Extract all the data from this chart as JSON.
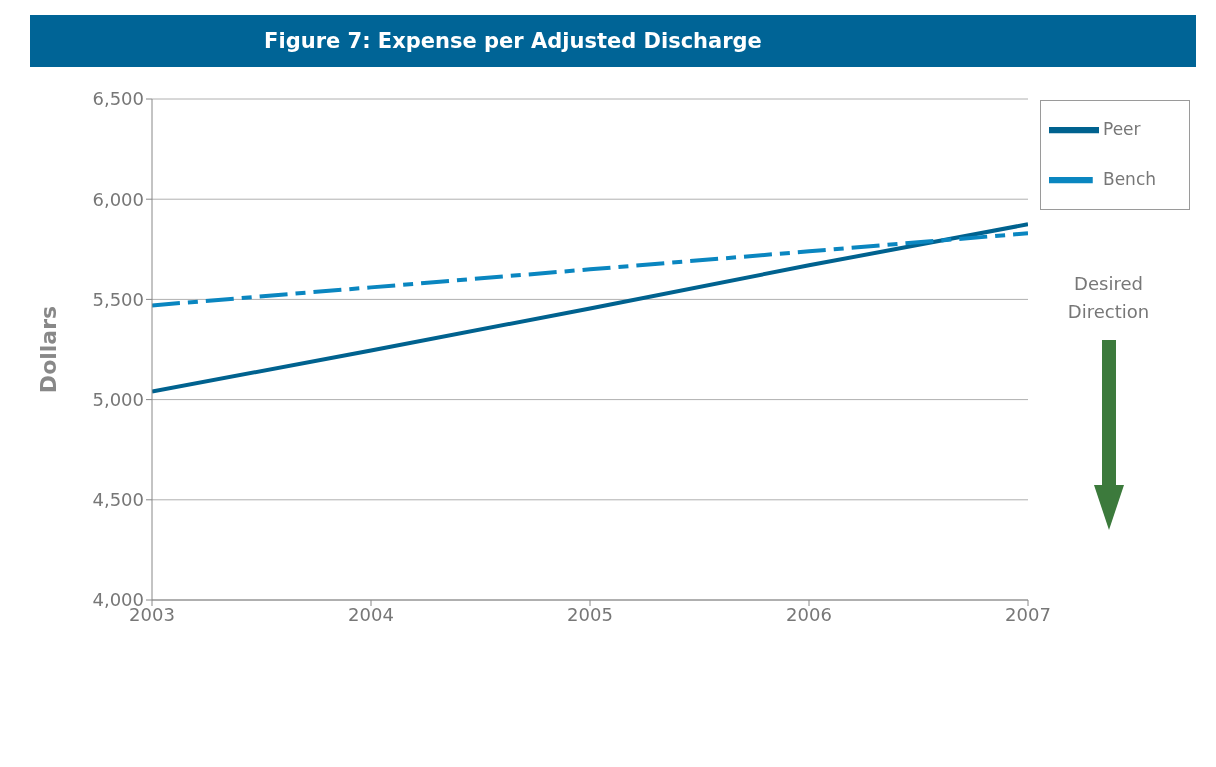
{
  "chart_data": {
    "type": "line",
    "title": "Figure 7: Expense per Adjusted Discharge",
    "ylabel": "Dollars",
    "x": [
      2003,
      2004,
      2005,
      2006,
      2007
    ],
    "xlim": [
      2003,
      2007
    ],
    "xticks": [
      2003,
      2004,
      2005,
      2006,
      2007
    ],
    "ylim": [
      4000,
      6500
    ],
    "yticks": [
      {
        "value": 4000,
        "label": "4,000"
      },
      {
        "value": 4500,
        "label": "4,500"
      },
      {
        "value": 5000,
        "label": "5,000"
      },
      {
        "value": 5500,
        "label": "5,500"
      },
      {
        "value": 6000,
        "label": "6,000"
      },
      {
        "value": 6500,
        "label": "6,500"
      }
    ],
    "grid": "y",
    "legend": "top right",
    "marker": "none",
    "series": [
      {
        "name": "Peer",
        "color": "#00628f",
        "values": [
          5040,
          5245,
          5455,
          5670,
          5875
        ],
        "line_style": "solid"
      },
      {
        "name": "Bench",
        "color": "#0a86c0",
        "values": [
          5470,
          5560,
          5650,
          5740,
          5830
        ],
        "line_style": "dashed"
      }
    ],
    "annotations": [
      "Desired Direction"
    ]
  }
}
